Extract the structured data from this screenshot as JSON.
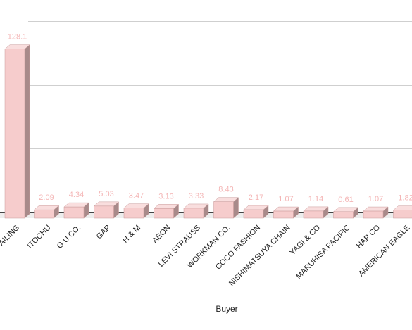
{
  "colors": {
    "bar_front": "#f6cccc",
    "bar_top": "#f9dede",
    "bar_side": "#a88a8a",
    "bar_stroke": "#c99a9a",
    "value_label": "#f4b6b6",
    "grid": "#cfcfcf",
    "floor": "#dedede"
  },
  "chart_data": {
    "type": "bar",
    "title": "",
    "xlabel": "Buyer",
    "ylabel": "",
    "ylim": [
      0,
      150
    ],
    "grid": true,
    "categories": [
      "ITOCHU",
      "G U CO.",
      "GAP",
      "H & M",
      "AEON",
      "LEVI STRAUSS",
      "WORKMAN CO.",
      "COCO FASHION",
      "NISHIMATSUYA CHAIN",
      "YAGI & CO",
      "MARUHISA PACIFIC",
      "HAP CO",
      "AMERICAN EAGLE"
    ],
    "values": [
      2.09,
      4.34,
      5.03,
      3.47,
      3.13,
      3.33,
      8.43,
      2.17,
      1.07,
      1.14,
      0.61,
      1.07,
      1.82
    ],
    "value_labels": [
      "2.09",
      "4.34",
      "5.03",
      "3.47",
      "3.13",
      "3.33",
      "8.43",
      "2.17",
      "1.07",
      "1.14",
      "0.61",
      "1.07",
      "1.82"
    ],
    "partial_first": {
      "category_fragment": "AILING",
      "value": 128.1,
      "value_label": "128.1"
    }
  }
}
